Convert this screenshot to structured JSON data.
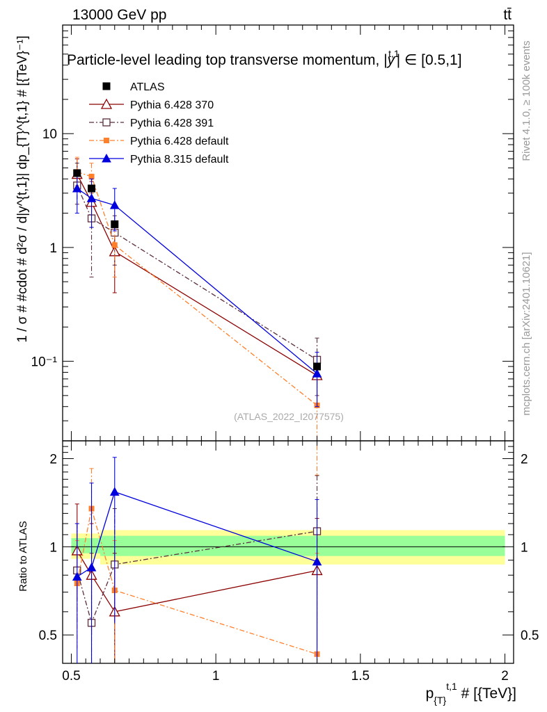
{
  "header": {
    "left": "13000 GeV pp",
    "right": "tt̄"
  },
  "side": {
    "rivet": "Rivet 4.1.0, ≥ 100k events",
    "mcplots": "mcplots.cern.ch [arXiv:2401.10621]"
  },
  "chart_data": {
    "type": "line",
    "title": "Particle-level leading top transverse momentum, |y^{t,1}| ∈ [0.5,1]",
    "title_main": "Particle-level leading top transverse momentum, |",
    "title_y": "y",
    "title_sup": "t,1",
    "title_tail": "| ∈ [0.5,1]",
    "watermark": "(ATLAS_2022_I2077575)",
    "xlabel_main": "p",
    "xlabel_sub": "{T}",
    "xlabel_sup": "t,1",
    "xlabel_tail": " # [{TeV}]",
    "ylabel": "1 / σ # #cdot # d²σ / d|y^{t,1}| dp_{T}^{t,1} # [{TeV}⁻¹]",
    "ratio_ylabel": "Ratio to ATLAS",
    "xlim": [
      0.47,
      2.03
    ],
    "ylim_top": [
      0.02,
      90
    ],
    "ylim_ratio": [
      0.4,
      2.3
    ],
    "x_ticks": [
      {
        "v": 0.5,
        "label": "0.5"
      },
      {
        "v": 1,
        "label": "1"
      },
      {
        "v": 1.5,
        "label": "1.5"
      },
      {
        "v": 2,
        "label": "2"
      }
    ],
    "y_ticks_top": [
      {
        "v": 10,
        "label": "10"
      },
      {
        "v": 1,
        "label": "1"
      },
      {
        "v": 0.1,
        "label": "10⁻¹"
      }
    ],
    "y_ticks_ratio": [
      {
        "v": 2,
        "label": "2"
      },
      {
        "v": 1,
        "label": "1"
      },
      {
        "v": 0.5,
        "label": "0.5"
      }
    ],
    "bin_edges": [
      0.5,
      0.55,
      0.6,
      0.7,
      2.0
    ],
    "bands": {
      "inner": [
        [
          0.95,
          1.07
        ],
        [
          0.95,
          1.07
        ],
        [
          0.93,
          1.09
        ],
        [
          0.93,
          1.09
        ]
      ],
      "outer": [
        [
          0.91,
          1.11
        ],
        [
          0.91,
          1.11
        ],
        [
          0.87,
          1.14
        ],
        [
          0.87,
          1.14
        ]
      ]
    },
    "data_series": {
      "name": "ATLAS",
      "x": [
        0.52,
        0.57,
        0.65,
        1.35
      ],
      "y": [
        4.5,
        3.3,
        1.6,
        0.09
      ]
    },
    "series": [
      {
        "name": "Pythia 6.428 370",
        "color": "#8b0000",
        "marker": "open-triangle",
        "dash": "solid",
        "x": [
          0.52,
          0.57,
          0.65,
          1.35
        ],
        "y": [
          4.4,
          2.5,
          0.92,
          0.075
        ],
        "err": [
          [
            3.2,
            6.0
          ],
          [
            1.5,
            3.8
          ],
          [
            0.4,
            1.3
          ],
          [
            0.04,
            0.11
          ]
        ],
        "ratio": [
          0.97,
          0.8,
          0.6,
          0.83
        ],
        "rerr": [
          [
            0.65,
            1.4
          ],
          [
            0.5,
            1.2
          ],
          [
            0.3,
            0.95
          ],
          [
            0.45,
            1.25
          ]
        ]
      },
      {
        "name": "Pythia 6.428 391",
        "color": "#5b2c3b",
        "marker": "open-square",
        "dash": "dashdot",
        "x": [
          0.52,
          0.57,
          0.65,
          1.35
        ],
        "y": [
          3.5,
          1.8,
          1.35,
          0.103
        ],
        "err": [
          [
            2.4,
            5.5
          ],
          [
            0.55,
            3.0
          ],
          [
            0.7,
            1.9
          ],
          [
            0.05,
            0.16
          ]
        ],
        "ratio": [
          0.83,
          0.55,
          0.87,
          1.13
        ],
        "rerr": [
          [
            0.55,
            1.2
          ],
          [
            0.2,
            0.95
          ],
          [
            0.4,
            1.35
          ],
          [
            0.55,
            1.75
          ]
        ]
      },
      {
        "name": "Pythia 6.428 default",
        "color": "#ff7f2a",
        "marker": "filled-square-small",
        "dash": "dashdot",
        "x": [
          0.52,
          0.57,
          0.65,
          1.35
        ],
        "y": [
          4.6,
          4.2,
          1.05,
          0.041
        ],
        "err": [
          [
            3.5,
            6.2
          ],
          [
            3.0,
            5.5
          ],
          [
            0.55,
            1.6
          ],
          [
            0.01,
            0.08
          ]
        ],
        "ratio": [
          0.75,
          1.35,
          0.71,
          0.43
        ],
        "rerr": [
          [
            0.45,
            1.05
          ],
          [
            0.9,
            1.85
          ],
          [
            0.3,
            1.05
          ],
          [
            0.08,
            0.95
          ]
        ]
      },
      {
        "name": "Pythia 8.315 default",
        "color": "#0000dd",
        "marker": "filled-triangle",
        "dash": "solid",
        "x": [
          0.52,
          0.57,
          0.65,
          1.35
        ],
        "y": [
          3.3,
          2.7,
          2.35,
          0.078
        ],
        "err": [
          [
            2.0,
            4.6
          ],
          [
            1.5,
            4.0
          ],
          [
            1.4,
            3.3
          ],
          [
            0.04,
            0.12
          ]
        ],
        "ratio": [
          0.79,
          0.85,
          1.54,
          0.89
        ],
        "rerr": [
          [
            0.35,
            1.2
          ],
          [
            0.35,
            1.65
          ],
          [
            0.55,
            2.02
          ],
          [
            0.35,
            1.45
          ]
        ]
      }
    ],
    "legend_position": "top-left"
  }
}
